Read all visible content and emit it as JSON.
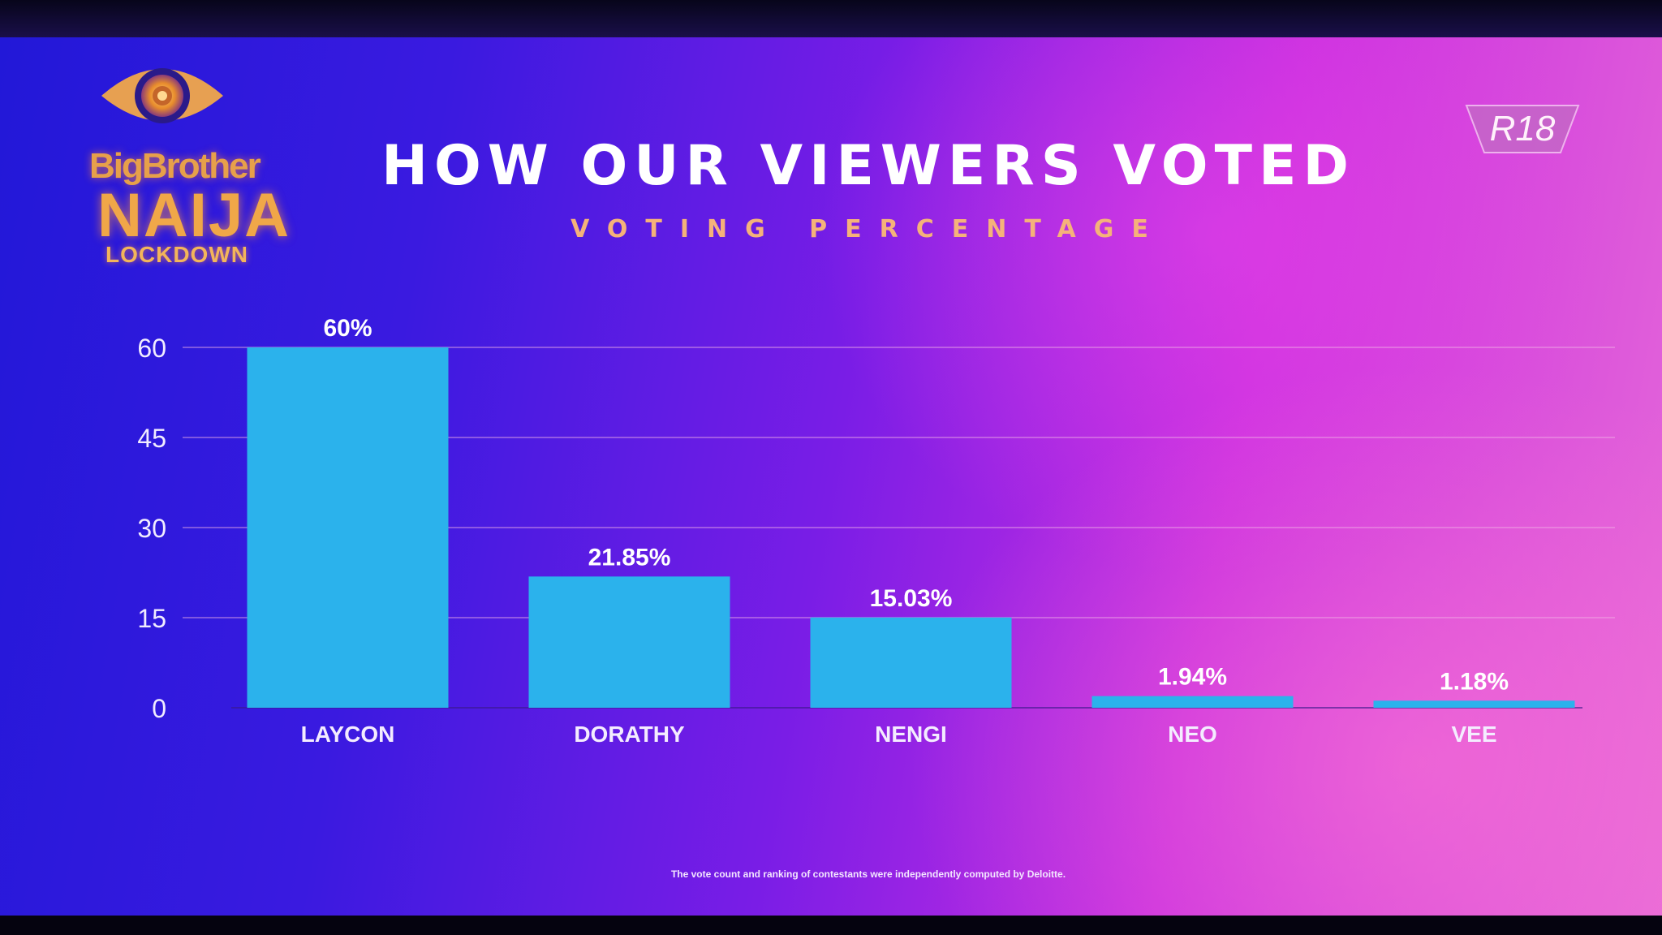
{
  "logo": {
    "line1": "BigBrother",
    "line2": "NAIJA",
    "line3": "LOCKDOWN"
  },
  "rating_badge": "R18",
  "title": "HOW OUR VIEWERS VOTED",
  "subtitle": "VOTING PERCENTAGE",
  "footnote": "The vote count and ranking of contestants were independently computed by Deloitte.",
  "colors": {
    "bar": "#2bb2ec",
    "title": "#ffffff",
    "subtitle": "#f5b27a",
    "logo": "#f0a748",
    "gridline": "#f2b3e6"
  },
  "chart_data": {
    "type": "bar",
    "title": "HOW OUR VIEWERS VOTED",
    "subtitle": "VOTING PERCENTAGE",
    "categories": [
      "LAYCON",
      "DORATHY",
      "NENGI",
      "NEO",
      "VEE"
    ],
    "values": [
      60,
      21.85,
      15.03,
      1.94,
      1.18
    ],
    "data_labels": [
      "60%",
      "21.85%",
      "15.03%",
      "1.94%",
      "1.18%"
    ],
    "yticks": [
      0,
      15,
      30,
      45,
      60
    ],
    "ylim": [
      0,
      60
    ],
    "xlabel": "",
    "ylabel": "",
    "grid": true
  }
}
